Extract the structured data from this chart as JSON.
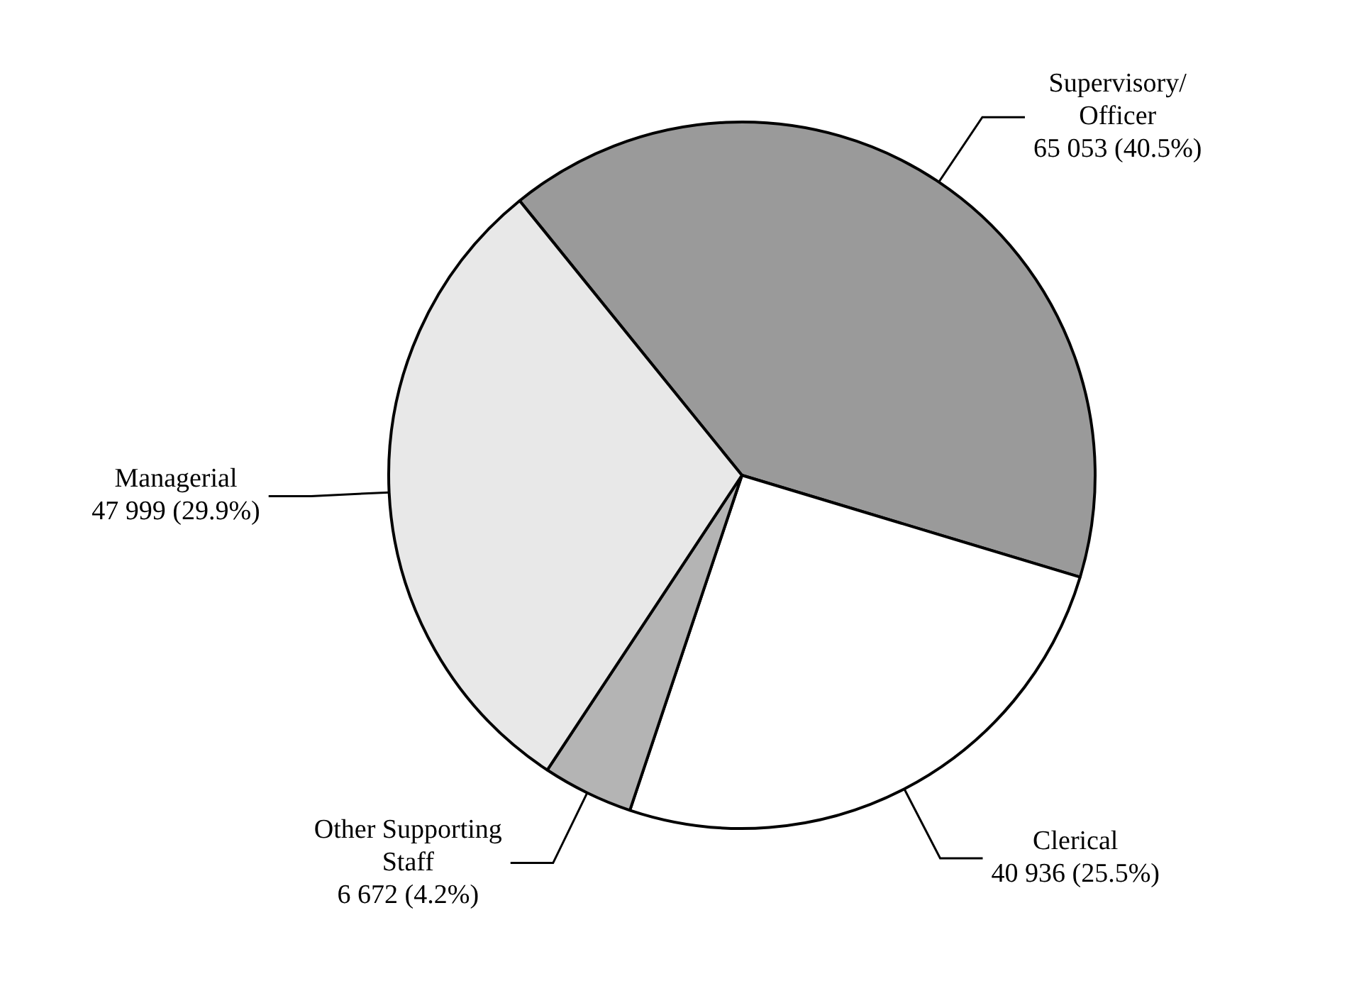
{
  "chart_data": {
    "type": "pie",
    "categories": [
      "Supervisory/ Officer",
      "Clerical",
      "Other Supporting Staff",
      "Managerial"
    ],
    "values": [
      65053,
      40936,
      6672,
      47999
    ],
    "colors": [
      "#9a9a9a",
      "#ffffff",
      "#b4b4b4",
      "#e8e8e8"
    ],
    "value_labels": [
      "65 053 (40.5%)",
      "40 936 (25.5%)",
      "6 672 (4.2%)",
      "47 999 (29.9%)"
    ],
    "legend": false
  }
}
